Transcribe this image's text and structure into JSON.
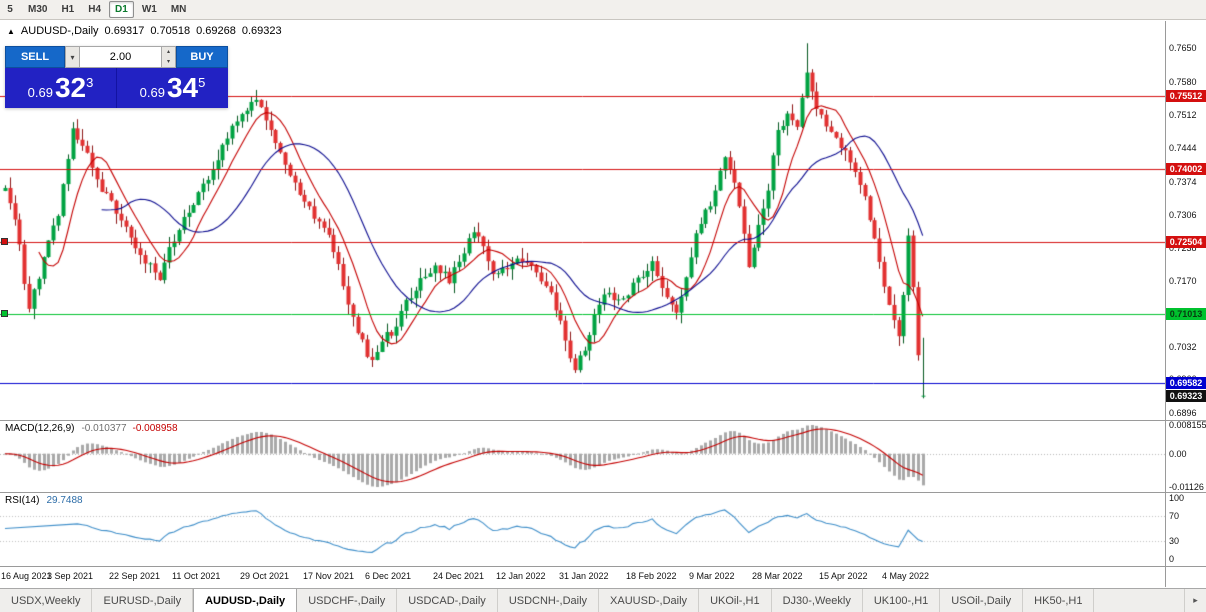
{
  "toolbar": {
    "timeframes": [
      "5",
      "M30",
      "H1",
      "H4",
      "D1",
      "W1",
      "MN"
    ],
    "active": "D1"
  },
  "chart_header": {
    "icon": "▲",
    "symbol": "AUDUSD-,Daily",
    "open": "0.69317",
    "high": "0.70518",
    "low": "0.69268",
    "close": "0.69323"
  },
  "trade_panel": {
    "sell_label": "SELL",
    "buy_label": "BUY",
    "volume": "2.00",
    "icons": {
      "dropdown_arrow": "▾",
      "spin_up": "▴",
      "spin_down": "▾"
    },
    "sell_price": {
      "base": "0.69",
      "big": "32",
      "sup": "3"
    },
    "buy_price": {
      "base": "0.69",
      "big": "34",
      "sup": "5"
    }
  },
  "price_axis": {
    "labels": [
      "0.7650",
      "0.7580",
      "0.7512",
      "0.7444",
      "0.7374",
      "0.7306",
      "0.7238",
      "0.7170",
      "0.7102",
      "0.7032",
      "0.6966",
      "0.6896"
    ],
    "top_price": 0.7706,
    "bottom_price": 0.6882
  },
  "hlines": [
    {
      "price": 0.75512,
      "label": "0.75512",
      "color": "#d40f0f",
      "text_color": "#ffffff",
      "marker": false
    },
    {
      "price": 0.74002,
      "label": "0.74002",
      "color": "#d40f0f",
      "text_color": "#ffffff",
      "marker": false
    },
    {
      "price": 0.72504,
      "label": "0.72504",
      "color": "#d40f0f",
      "text_color": "#ffffff",
      "marker": true
    },
    {
      "price": 0.71013,
      "label": "0.71013",
      "color": "#00c22e",
      "text_color": "#083a10",
      "marker": true
    },
    {
      "price": 0.69582,
      "label": "0.69582",
      "color": "#0000cf",
      "text_color": "#ffffff",
      "marker": false
    }
  ],
  "current_price": {
    "value": 0.69323,
    "label": "0.69323",
    "badge_color": "#111111",
    "text_color": "#ffffff"
  },
  "macd_panel": {
    "title": "MACD(12,26,9)",
    "value_main": "-0.010377",
    "value_signal": "-0.008958",
    "axis_labels": [
      "0.008155",
      "0.00",
      "-0.01126"
    ]
  },
  "rsi_panel": {
    "title": "RSI(14)",
    "value": "29.7488",
    "axis_labels": [
      "100",
      "70",
      "30",
      "0"
    ],
    "levels": [
      70,
      30
    ]
  },
  "date_axis": {
    "labels": [
      {
        "text": "16 Aug 2021",
        "i": 0
      },
      {
        "text": "3 Sep 2021",
        "i": 14
      },
      {
        "text": "22 Sep 2021",
        "i": 27
      },
      {
        "text": "11 Oct 2021",
        "i": 40
      },
      {
        "text": "29 Oct 2021",
        "i": 54
      },
      {
        "text": "17 Nov 2021",
        "i": 67
      },
      {
        "text": "6 Dec 2021",
        "i": 80
      },
      {
        "text": "24 Dec 2021",
        "i": 94
      },
      {
        "text": "12 Jan 2022",
        "i": 107
      },
      {
        "text": "31 Jan 2022",
        "i": 120
      },
      {
        "text": "18 Feb 2022",
        "i": 134
      },
      {
        "text": "9 Mar 2022",
        "i": 147
      },
      {
        "text": "28 Mar 2022",
        "i": 160
      },
      {
        "text": "15 Apr 2022",
        "i": 174
      },
      {
        "text": "4 May 2022",
        "i": 187
      }
    ]
  },
  "tabs": {
    "items": [
      "USDX,Weekly",
      "EURUSD-,Daily",
      "AUDUSD-,Daily",
      "USDCHF-,Daily",
      "USDCAD-,Daily",
      "USDCNH-,Daily",
      "XAUUSD-,Daily",
      "UKOil-,H1",
      "DJ30-,Weekly",
      "UK100-,H1",
      "USOil-,Daily",
      "HK50-,H1"
    ],
    "active_index": 2,
    "scroll_icon": "▸"
  },
  "chart_data": {
    "type": "candlestick",
    "symbol": "AUDUSD",
    "timeframe": "Daily",
    "candle_count": 191,
    "visible_first_date": "16 Aug 2021",
    "visible_last_date": "10 May 2022",
    "up_color": "#00a342",
    "up_stroke": "#03571f",
    "down_color": "#e23131",
    "down_stroke": "#8c1414",
    "ma_fast": {
      "period": 8,
      "color": "#c40000"
    },
    "ma_slow": {
      "period": 21,
      "color": "#0b0b8f"
    },
    "macd": {
      "fast": 12,
      "slow": 26,
      "signal": 9,
      "hist_color": "#a9a9a9",
      "signal_color": "#c40000"
    },
    "rsi": {
      "period": 14,
      "color": "#3e8ec9",
      "current": 29.7488
    },
    "last_candle": {
      "o": 0.69317,
      "h": 0.70518,
      "l": 0.69268,
      "c": 0.69323
    },
    "spike": {
      "index": 166,
      "high": 0.766
    },
    "price_anchors": [
      [
        0,
        0.7355
      ],
      [
        2,
        0.73
      ],
      [
        5,
        0.7107
      ],
      [
        8,
        0.7215
      ],
      [
        11,
        0.7305
      ],
      [
        14,
        0.7478
      ],
      [
        17,
        0.7425
      ],
      [
        20,
        0.7362
      ],
      [
        24,
        0.7292
      ],
      [
        27,
        0.7242
      ],
      [
        30,
        0.72
      ],
      [
        32,
        0.7172
      ],
      [
        34,
        0.7232
      ],
      [
        37,
        0.73
      ],
      [
        40,
        0.7348
      ],
      [
        43,
        0.7402
      ],
      [
        46,
        0.7468
      ],
      [
        49,
        0.7515
      ],
      [
        52,
        0.7542
      ],
      [
        55,
        0.7482
      ],
      [
        58,
        0.7412
      ],
      [
        61,
        0.7352
      ],
      [
        64,
        0.7302
      ],
      [
        67,
        0.7272
      ],
      [
        70,
        0.7162
      ],
      [
        73,
        0.7062
      ],
      [
        76,
        0.6998
      ],
      [
        78,
        0.7048
      ],
      [
        80,
        0.7062
      ],
      [
        83,
        0.7122
      ],
      [
        86,
        0.7172
      ],
      [
        89,
        0.7202
      ],
      [
        92,
        0.7172
      ],
      [
        95,
        0.7232
      ],
      [
        97,
        0.7276
      ],
      [
        99,
        0.7242
      ],
      [
        101,
        0.7178
      ],
      [
        103,
        0.7192
      ],
      [
        105,
        0.7206
      ],
      [
        107,
        0.7216
      ],
      [
        110,
        0.7186
      ],
      [
        113,
        0.7146
      ],
      [
        115,
        0.7082
      ],
      [
        117,
        0.7012
      ],
      [
        118,
        0.6986
      ],
      [
        120,
        0.7032
      ],
      [
        122,
        0.7092
      ],
      [
        124,
        0.7146
      ],
      [
        126,
        0.7132
      ],
      [
        128,
        0.7126
      ],
      [
        130,
        0.7162
      ],
      [
        132,
        0.7186
      ],
      [
        134,
        0.7202
      ],
      [
        136,
        0.7162
      ],
      [
        138,
        0.7112
      ],
      [
        139,
        0.7096
      ],
      [
        141,
        0.7182
      ],
      [
        143,
        0.7262
      ],
      [
        145,
        0.7312
      ],
      [
        147,
        0.7352
      ],
      [
        149,
        0.7432
      ],
      [
        151,
        0.7372
      ],
      [
        153,
        0.7262
      ],
      [
        154,
        0.7192
      ],
      [
        156,
        0.7282
      ],
      [
        158,
        0.7362
      ],
      [
        160,
        0.7482
      ],
      [
        162,
        0.7512
      ],
      [
        164,
        0.7482
      ],
      [
        166,
        0.7596
      ],
      [
        168,
        0.7522
      ],
      [
        170,
        0.7492
      ],
      [
        172,
        0.7462
      ],
      [
        174,
        0.7432
      ],
      [
        176,
        0.7392
      ],
      [
        178,
        0.7342
      ],
      [
        180,
        0.7252
      ],
      [
        182,
        0.7152
      ],
      [
        184,
        0.7082
      ],
      [
        185,
        0.7052
      ],
      [
        186,
        0.7142
      ],
      [
        187,
        0.7262
      ],
      [
        188,
        0.715
      ],
      [
        189,
        0.701
      ],
      [
        190,
        0.6932
      ]
    ]
  }
}
